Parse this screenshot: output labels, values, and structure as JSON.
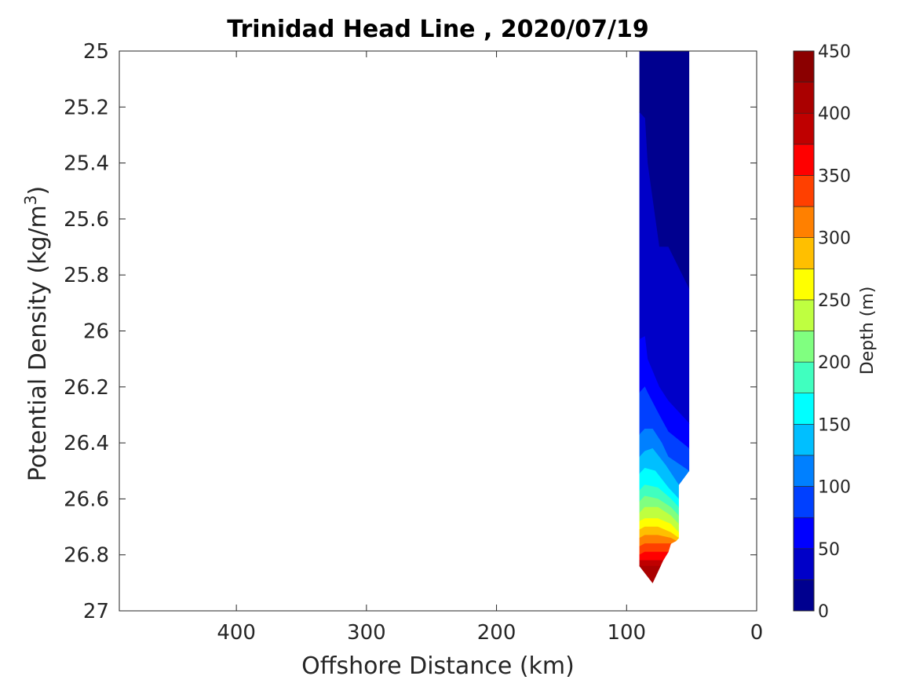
{
  "chart_data": {
    "type": "filled-contour",
    "title": "Trinidad Head Line , 2020/07/19",
    "xlabel": "Offshore Distance (km)",
    "ylabel_main": "Potential Density (kg/m",
    "ylabel_sup": "3",
    "ylabel_close": ")",
    "x_reversed": true,
    "y_reversed": true,
    "xlim": [
      0,
      490
    ],
    "ylim": [
      25,
      27
    ],
    "xticks": [
      400,
      300,
      200,
      100,
      0
    ],
    "xtick_labels": [
      "400",
      "300",
      "200",
      "100",
      "0"
    ],
    "yticks": [
      25,
      25.2,
      25.4,
      25.6,
      25.8,
      26,
      26.2,
      26.4,
      26.6,
      26.8,
      27
    ],
    "ytick_labels": [
      "25",
      "25.2",
      "25.4",
      "25.6",
      "25.8",
      "26",
      "26.2",
      "26.4",
      "26.6",
      "26.8",
      "27"
    ],
    "colorbar": {
      "label": "Depth (m)",
      "range": [
        0,
        450
      ],
      "ticks": [
        0,
        50,
        100,
        150,
        200,
        250,
        300,
        350,
        400,
        450
      ],
      "tick_labels": [
        "0",
        "50",
        "100",
        "150",
        "200",
        "250",
        "300",
        "350",
        "400",
        "450"
      ],
      "level_step": 25,
      "colors": [
        "#00008f",
        "#0000c8",
        "#0000ff",
        "#0040ff",
        "#0080ff",
        "#00bfff",
        "#00ffff",
        "#40ffbf",
        "#80ff80",
        "#bfff40",
        "#ffff00",
        "#ffbf00",
        "#ff8000",
        "#ff4000",
        "#ff0000",
        "#bf0000",
        "#aa0000",
        "#8b0000"
      ]
    },
    "depth_contours": [
      {
        "depth": 25,
        "points": [
          [
            90,
            25.22
          ],
          [
            86,
            25.24
          ],
          [
            84,
            25.4
          ],
          [
            75,
            25.7
          ],
          [
            68,
            25.7
          ],
          [
            52,
            25.85
          ]
        ]
      },
      {
        "depth": 50,
        "points": [
          [
            90,
            26.03
          ],
          [
            86,
            26.02
          ],
          [
            84,
            26.1
          ],
          [
            75,
            26.2
          ],
          [
            68,
            26.25
          ],
          [
            52,
            26.33
          ]
        ]
      },
      {
        "depth": 75,
        "points": [
          [
            90,
            26.22
          ],
          [
            86,
            26.2
          ],
          [
            84,
            26.22
          ],
          [
            75,
            26.3
          ],
          [
            68,
            26.36
          ],
          [
            52,
            26.42
          ]
        ]
      },
      {
        "depth": 100,
        "points": [
          [
            90,
            26.37
          ],
          [
            86,
            26.35
          ],
          [
            80,
            26.35
          ],
          [
            73,
            26.4
          ],
          [
            68,
            26.45
          ],
          [
            52,
            26.5
          ]
        ]
      },
      {
        "depth": 125,
        "points": [
          [
            90,
            26.45
          ],
          [
            86,
            26.43
          ],
          [
            80,
            26.42
          ],
          [
            70,
            26.48
          ],
          [
            60,
            26.55
          ]
        ]
      },
      {
        "depth": 150,
        "points": [
          [
            90,
            26.51
          ],
          [
            86,
            26.49
          ],
          [
            78,
            26.5
          ],
          [
            68,
            26.56
          ],
          [
            60,
            26.6
          ]
        ]
      },
      {
        "depth": 175,
        "points": [
          [
            90,
            26.57
          ],
          [
            86,
            26.55
          ],
          [
            76,
            26.56
          ],
          [
            66,
            26.6
          ],
          [
            60,
            26.63
          ]
        ]
      },
      {
        "depth": 200,
        "points": [
          [
            90,
            26.61
          ],
          [
            86,
            26.59
          ],
          [
            76,
            26.6
          ],
          [
            66,
            26.63
          ],
          [
            60,
            26.66
          ]
        ]
      },
      {
        "depth": 225,
        "points": [
          [
            90,
            26.65
          ],
          [
            86,
            26.63
          ],
          [
            76,
            26.63
          ],
          [
            66,
            26.66
          ],
          [
            60,
            26.69
          ]
        ]
      },
      {
        "depth": 250,
        "points": [
          [
            90,
            26.68
          ],
          [
            86,
            26.67
          ],
          [
            76,
            26.67
          ],
          [
            66,
            26.69
          ],
          [
            60,
            26.72
          ]
        ]
      },
      {
        "depth": 275,
        "points": [
          [
            90,
            26.71
          ],
          [
            86,
            26.7
          ],
          [
            76,
            26.7
          ],
          [
            66,
            26.72
          ],
          [
            60,
            26.74
          ]
        ]
      },
      {
        "depth": 300,
        "points": [
          [
            90,
            26.74
          ],
          [
            86,
            26.73
          ],
          [
            76,
            26.73
          ],
          [
            66,
            26.74
          ],
          [
            62,
            26.75
          ]
        ]
      },
      {
        "depth": 325,
        "points": [
          [
            90,
            26.77
          ],
          [
            86,
            26.76
          ],
          [
            76,
            26.76
          ],
          [
            66,
            26.76
          ]
        ]
      },
      {
        "depth": 350,
        "points": [
          [
            90,
            26.8
          ],
          [
            86,
            26.79
          ],
          [
            76,
            26.79
          ],
          [
            68,
            26.79
          ]
        ]
      },
      {
        "depth": 375,
        "points": [
          [
            90,
            26.82
          ],
          [
            86,
            26.82
          ],
          [
            76,
            26.82
          ],
          [
            72,
            26.82
          ]
        ]
      },
      {
        "depth": 400,
        "points": [
          [
            90,
            26.84
          ],
          [
            86,
            26.84
          ],
          [
            76,
            26.84
          ],
          [
            74,
            26.84
          ]
        ]
      }
    ]
  }
}
